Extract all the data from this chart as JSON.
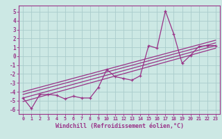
{
  "title": "",
  "xlabel": "Windchill (Refroidissement éolien,°C)",
  "ylabel": "",
  "background_color": "#cce8e4",
  "grid_color": "#aacccc",
  "line_color": "#993388",
  "xlim": [
    -0.5,
    23.5
  ],
  "ylim": [
    -6.5,
    5.7
  ],
  "xticks": [
    0,
    1,
    2,
    3,
    4,
    5,
    6,
    7,
    8,
    9,
    10,
    11,
    12,
    13,
    14,
    15,
    16,
    17,
    18,
    19,
    20,
    21,
    22,
    23
  ],
  "yticks": [
    -6,
    -5,
    -4,
    -3,
    -2,
    -1,
    0,
    1,
    2,
    3,
    4,
    5
  ],
  "series": [
    [
      0,
      -4.7
    ],
    [
      1,
      -5.9
    ],
    [
      2,
      -4.3
    ],
    [
      3,
      -4.3
    ],
    [
      4,
      -4.4
    ],
    [
      5,
      -4.8
    ],
    [
      6,
      -4.5
    ],
    [
      7,
      -4.7
    ],
    [
      8,
      -4.7
    ],
    [
      9,
      -3.5
    ],
    [
      10,
      -1.5
    ],
    [
      11,
      -2.3
    ],
    [
      12,
      -2.5
    ],
    [
      13,
      -2.7
    ],
    [
      14,
      -2.2
    ],
    [
      15,
      1.2
    ],
    [
      16,
      0.9
    ],
    [
      17,
      5.1
    ],
    [
      18,
      2.5
    ],
    [
      19,
      -0.8
    ],
    [
      20,
      0.1
    ],
    [
      21,
      1.1
    ],
    [
      22,
      1.2
    ],
    [
      23,
      1.2
    ]
  ],
  "trend_lines": [
    [
      [
        0,
        -4.3
      ],
      [
        23,
        1.5
      ]
    ],
    [
      [
        0,
        -4.7
      ],
      [
        23,
        1.2
      ]
    ],
    [
      [
        0,
        -5.1
      ],
      [
        23,
        0.9
      ]
    ],
    [
      [
        0,
        -4.0
      ],
      [
        23,
        1.8
      ]
    ]
  ]
}
